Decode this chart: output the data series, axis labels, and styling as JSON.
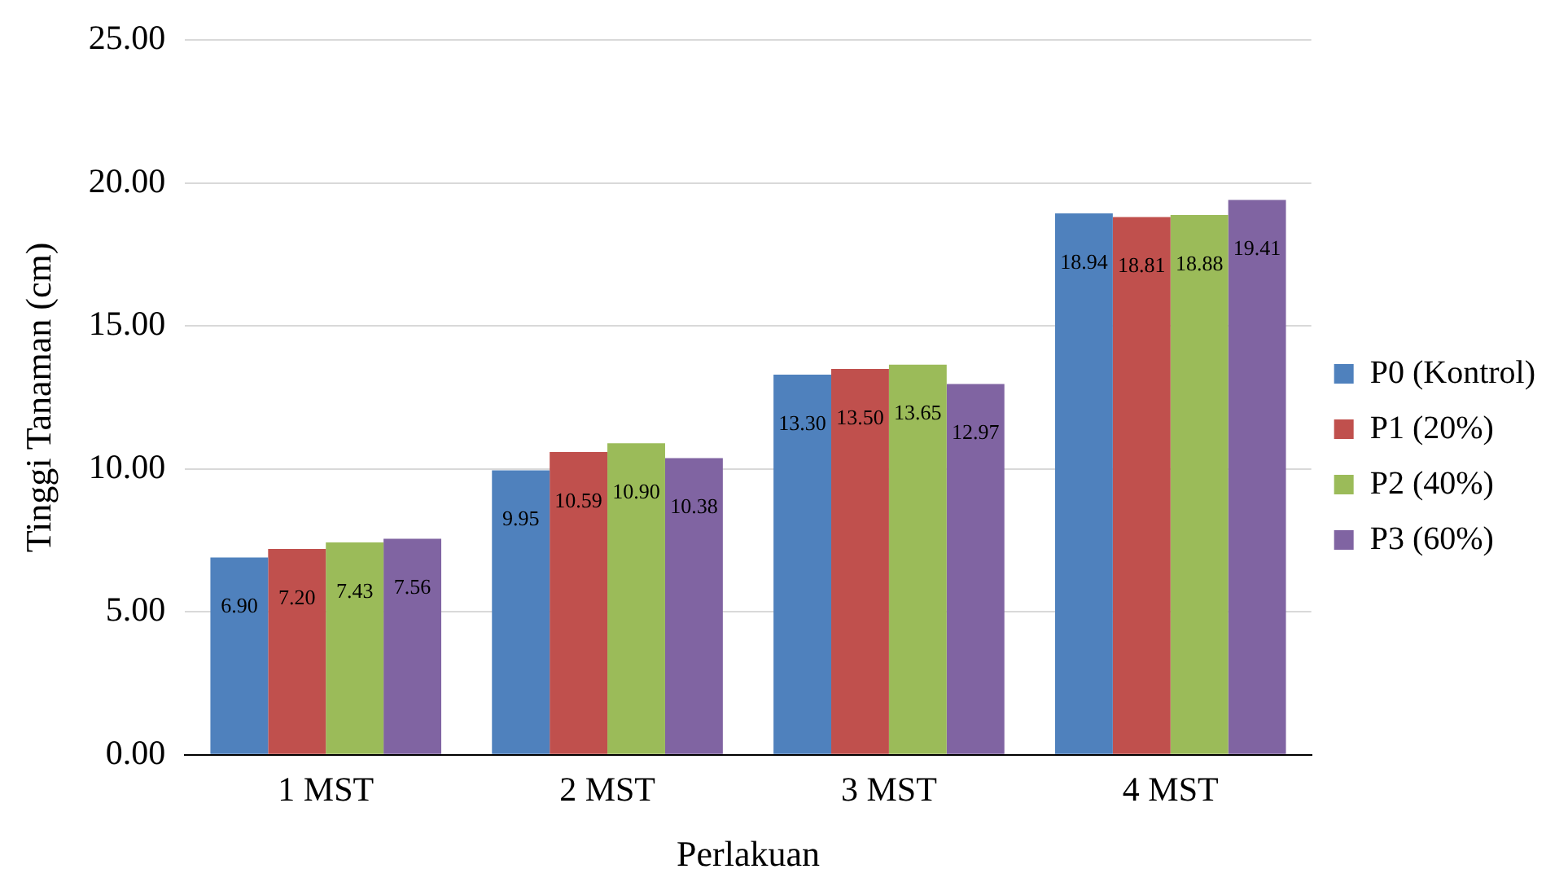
{
  "chart_data": {
    "type": "bar",
    "xlabel": "Perlakuan",
    "ylabel": "Tinggi Tanaman (cm)",
    "categories": [
      "1 MST",
      "2 MST",
      "3 MST",
      "4 MST"
    ],
    "series": [
      {
        "name": "P0 (Kontrol)",
        "color": "#4f81bd",
        "values": [
          6.9,
          9.95,
          13.3,
          18.94
        ],
        "value_labels": [
          "6.90",
          "9.95",
          "13.30",
          "18.94"
        ]
      },
      {
        "name": "P1 (20%)",
        "color": "#c0504d",
        "values": [
          7.2,
          10.59,
          13.5,
          18.81
        ],
        "value_labels": [
          "7.20",
          "10.59",
          "13.50",
          "18.81"
        ]
      },
      {
        "name": "P2 (40%)",
        "color": "#9bbb59",
        "values": [
          7.43,
          10.9,
          13.65,
          18.88
        ],
        "value_labels": [
          "7.43",
          "10.90",
          "13.65",
          "18.88"
        ]
      },
      {
        "name": "P3 (60%)",
        "color": "#8064a2",
        "values": [
          7.56,
          10.38,
          12.97,
          19.41
        ],
        "value_labels": [
          "7.56",
          "10.38",
          "12.97",
          "19.41"
        ]
      }
    ],
    "ylim": [
      0,
      25
    ],
    "yticks": [
      {
        "value": 0,
        "label": "0.00"
      },
      {
        "value": 5,
        "label": "5.00"
      },
      {
        "value": 10,
        "label": "10.00"
      },
      {
        "value": 15,
        "label": "15.00"
      },
      {
        "value": 20,
        "label": "20.00"
      },
      {
        "value": 25,
        "label": "25.00"
      }
    ],
    "grid": "y",
    "legend": "right"
  }
}
